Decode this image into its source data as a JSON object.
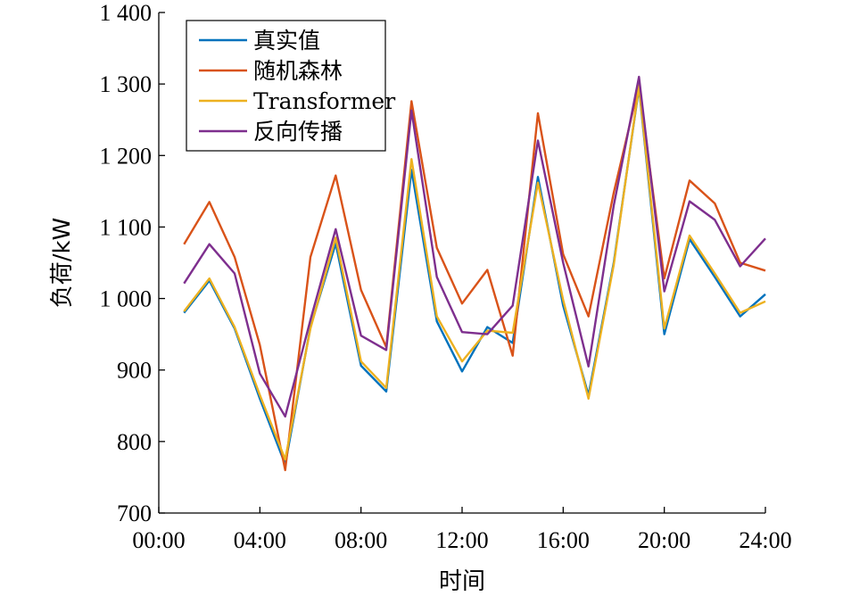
{
  "chart_data": {
    "type": "line",
    "xlabel": "时间",
    "ylabel": "负荷/kW",
    "x": [
      1,
      2,
      3,
      4,
      5,
      6,
      7,
      8,
      9,
      10,
      11,
      12,
      13,
      14,
      15,
      16,
      17,
      18,
      19,
      20,
      21,
      22,
      23,
      24
    ],
    "xlim": [
      0,
      24
    ],
    "ylim": [
      700,
      1400
    ],
    "x_ticks": [
      {
        "value": 0,
        "label": "00:00"
      },
      {
        "value": 4,
        "label": "04:00"
      },
      {
        "value": 8,
        "label": "08:00"
      },
      {
        "value": 12,
        "label": "12:00"
      },
      {
        "value": 16,
        "label": "16:00"
      },
      {
        "value": 20,
        "label": "20:00"
      },
      {
        "value": 24,
        "label": "24:00"
      }
    ],
    "y_ticks": [
      {
        "value": 700,
        "label": "700"
      },
      {
        "value": 800,
        "label": "800"
      },
      {
        "value": 900,
        "label": "900"
      },
      {
        "value": 1000,
        "label": "1 000"
      },
      {
        "value": 1100,
        "label": "1 100"
      },
      {
        "value": 1200,
        "label": "1 200"
      },
      {
        "value": 1300,
        "label": "1 300"
      },
      {
        "value": 1400,
        "label": "1 400"
      }
    ],
    "grid": false,
    "legend_position": "top-left",
    "series": [
      {
        "name": "真实值",
        "color": "#0072BD",
        "values": [
          980,
          1025,
          958,
          860,
          768,
          960,
          1077,
          906,
          870,
          1180,
          968,
          898,
          960,
          938,
          1170,
          990,
          865,
          1050,
          1295,
          950,
          1083,
          1030,
          975,
          1006
        ]
      },
      {
        "name": "随机森林",
        "color": "#D95319",
        "values": [
          1076,
          1135,
          1058,
          935,
          760,
          1058,
          1172,
          1012,
          932,
          1276,
          1071,
          993,
          1040,
          920,
          1259,
          1062,
          975,
          1148,
          1298,
          1028,
          1165,
          1133,
          1050,
          1039
        ]
      },
      {
        "name": "Transformer",
        "color": "#EDB120",
        "values": [
          982,
          1028,
          960,
          865,
          775,
          958,
          1085,
          912,
          875,
          1195,
          975,
          912,
          955,
          952,
          1162,
          998,
          860,
          1047,
          1297,
          958,
          1088,
          1035,
          980,
          996
        ]
      },
      {
        "name": "反向传播",
        "color": "#7E2F8E",
        "values": [
          1021,
          1076,
          1035,
          895,
          835,
          970,
          1097,
          948,
          928,
          1263,
          1030,
          953,
          950,
          990,
          1221,
          1050,
          905,
          1130,
          1310,
          1010,
          1136,
          1110,
          1045,
          1084
        ]
      }
    ]
  }
}
